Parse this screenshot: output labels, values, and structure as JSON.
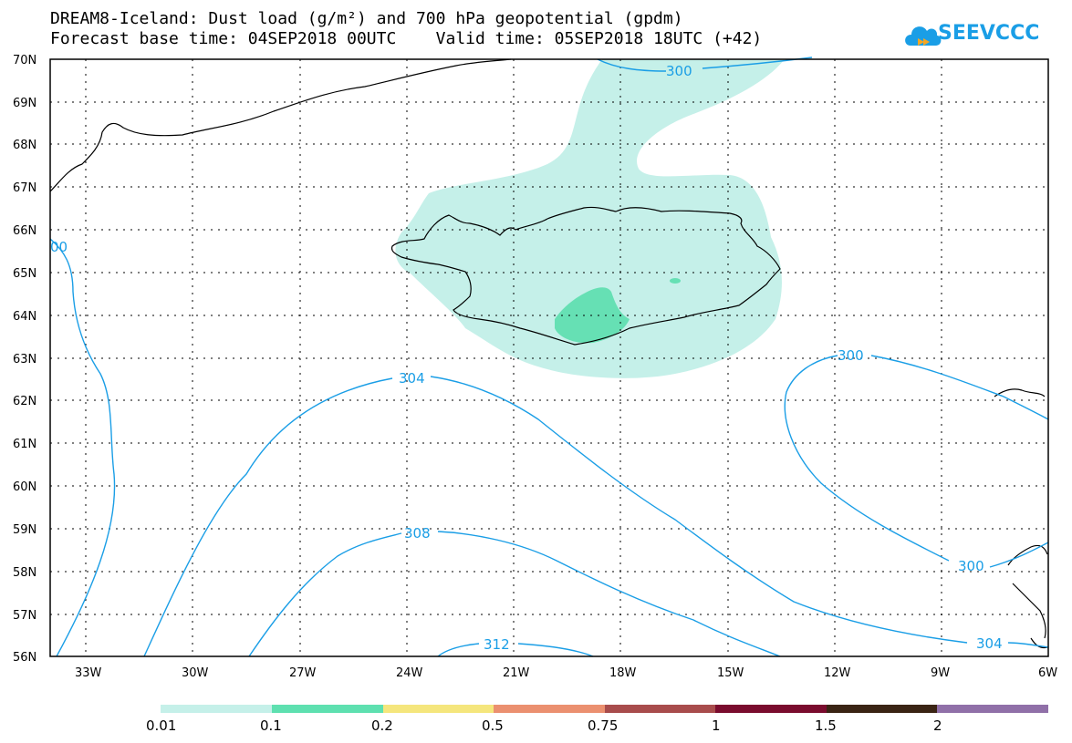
{
  "header": {
    "title_line1": "DREAM8-Iceland: Dust load (g/m²) and 700 hPa geopotential (gpdm)",
    "title_line2": "Forecast base time: 04SEP2018 00UTC    Valid time: 05SEP2018 18UTC (+42)",
    "logo_text": "SEEVCCC"
  },
  "map": {
    "lat_labels": [
      "70N",
      "69N",
      "68N",
      "67N",
      "66N",
      "65N",
      "64N",
      "63N",
      "62N",
      "61N",
      "60N",
      "59N",
      "58N",
      "57N",
      "56N"
    ],
    "lon_labels": [
      "33W",
      "30W",
      "27W",
      "24W",
      "21W",
      "18W",
      "15W",
      "12W",
      "9W",
      "6W"
    ],
    "contour_labels": [
      "300",
      "300",
      "300",
      "304",
      "304",
      "308",
      "312",
      "00"
    ],
    "dust_color_light": "#c5f0e9",
    "dust_color_mid": "#66e0b4",
    "contour_color": "#1a9ee6"
  },
  "colorbar": {
    "labels": [
      "0.01",
      "0.1",
      "0.2",
      "0.5",
      "0.75",
      "1",
      "1.5",
      "2"
    ],
    "colors": [
      "#c5f0e9",
      "#5ee0b0",
      "#f5e67d",
      "#eb9070",
      "#a84c4c",
      "#7a0c2e",
      "#3a2414",
      "#9070a8"
    ]
  }
}
